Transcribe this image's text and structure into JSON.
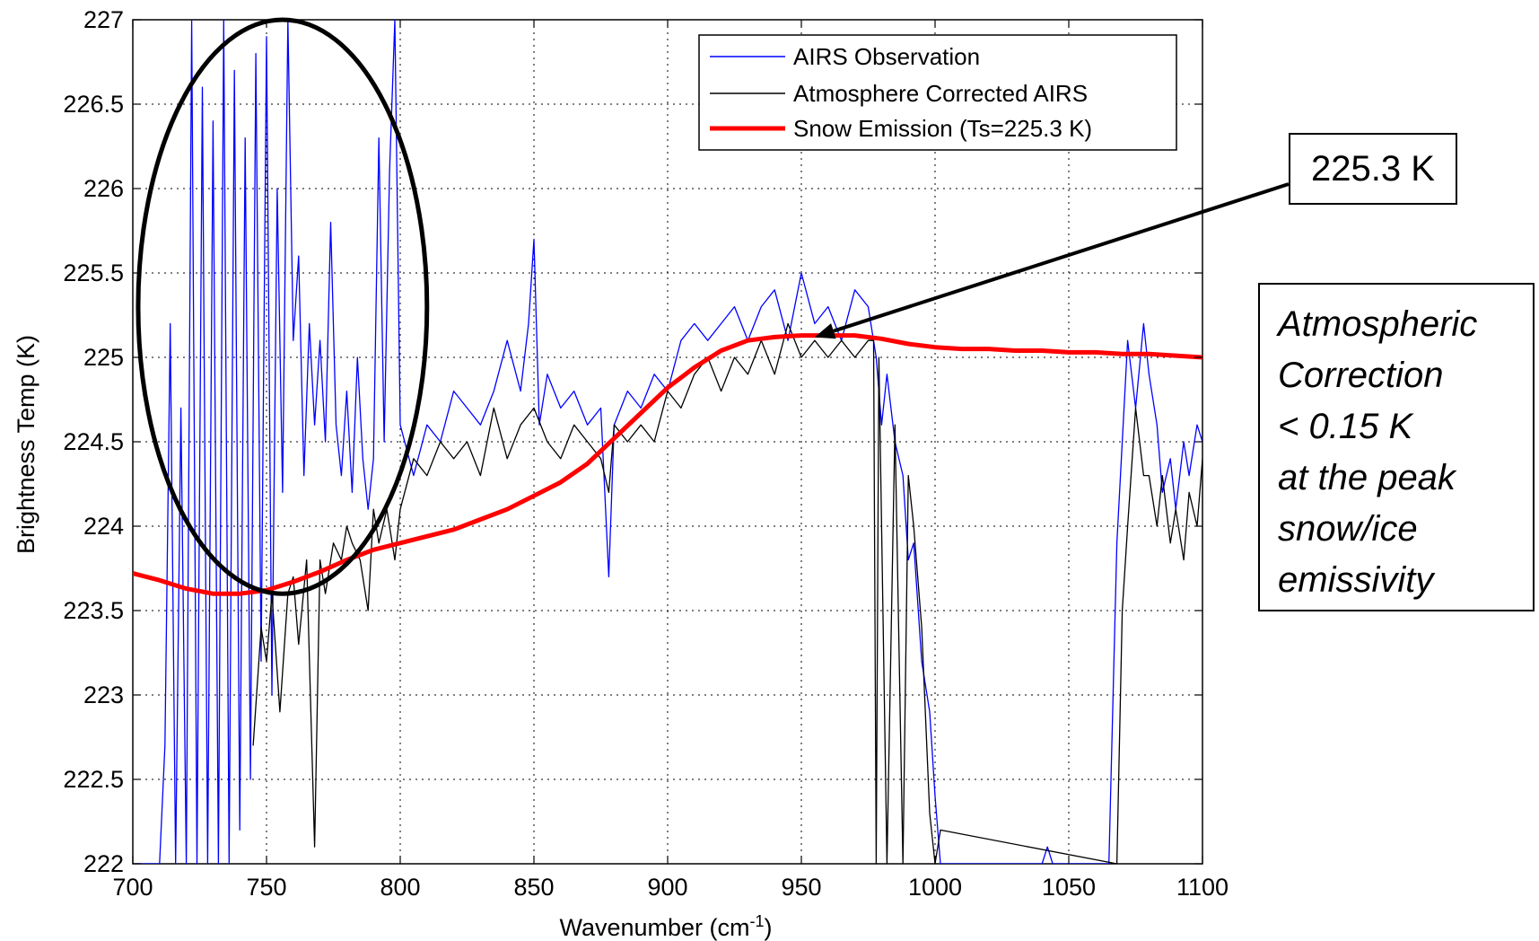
{
  "chart_data": {
    "type": "line",
    "title": "",
    "xlabel": "Wavenumber (cm",
    "xlabel_sup": "-1",
    "xlabel_end": ")",
    "ylabel": "Brightness Temp (K)",
    "xlim": [
      700,
      1100
    ],
    "ylim": [
      222,
      227
    ],
    "xticks": [
      "700",
      "750",
      "800",
      "850",
      "900",
      "950",
      "1000",
      "1050",
      "1100"
    ],
    "yticks": [
      "222",
      "222.5",
      "223",
      "223.5",
      "224",
      "224.5",
      "225",
      "225.5",
      "226",
      "226.5",
      "227"
    ],
    "grid": true,
    "legend_position": "top-right",
    "series": [
      {
        "name": "AIRS Observation",
        "color": "#0000ff",
        "x": [
          700,
          705,
          710,
          712,
          714,
          716,
          718,
          720,
          722,
          724,
          726,
          728,
          730,
          732,
          734,
          736,
          738,
          740,
          742,
          744,
          746,
          748,
          750,
          752,
          754,
          756,
          758,
          760,
          762,
          764,
          766,
          768,
          770,
          772,
          774,
          776,
          778,
          780,
          782,
          784,
          786,
          788,
          790,
          792,
          794,
          796,
          798,
          800,
          805,
          810,
          815,
          820,
          825,
          830,
          835,
          840,
          845,
          848,
          850,
          852,
          855,
          860,
          865,
          870,
          875,
          878,
          880,
          885,
          890,
          895,
          900,
          905,
          910,
          915,
          920,
          925,
          930,
          935,
          940,
          945,
          950,
          955,
          960,
          965,
          970,
          975,
          978,
          980,
          982,
          985,
          988,
          990,
          992,
          995,
          998,
          1000,
          1002,
          1004,
          1040,
          1042,
          1044,
          1065,
          1068,
          1070,
          1072,
          1075,
          1078,
          1080,
          1083,
          1085,
          1088,
          1090,
          1093,
          1095,
          1098,
          1100
        ],
        "y": [
          222,
          222,
          222,
          222.7,
          225.2,
          222,
          224.7,
          222,
          227,
          222,
          226.6,
          222,
          226.4,
          222,
          227,
          222,
          226.7,
          222.2,
          226.3,
          222.5,
          226.8,
          223.2,
          226.9,
          223,
          226,
          224.2,
          227,
          225.1,
          225.6,
          224.3,
          225.2,
          224.6,
          225.1,
          224.5,
          225.8,
          224.6,
          224.3,
          224.8,
          224.2,
          225,
          224.4,
          224.1,
          224.4,
          226.3,
          224.5,
          226.1,
          227,
          224.6,
          224.3,
          224.6,
          224.5,
          224.8,
          224.7,
          224.6,
          224.8,
          225.1,
          224.8,
          225.2,
          225.7,
          224.6,
          224.9,
          224.7,
          224.8,
          224.6,
          224.7,
          223.7,
          224.6,
          224.8,
          224.7,
          224.9,
          224.8,
          225.1,
          225.2,
          225.1,
          225.2,
          225.3,
          225.1,
          225.3,
          225.4,
          225.1,
          225.5,
          225.2,
          225.3,
          225.1,
          225.4,
          225.3,
          225,
          224.6,
          224.9,
          224.5,
          224.3,
          223.8,
          223.9,
          223.2,
          222.9,
          222.4,
          222,
          222,
          222,
          222.1,
          222,
          222,
          223.9,
          224.5,
          225.1,
          224.7,
          225.2,
          224.9,
          224.6,
          224.2,
          224.4,
          224.1,
          224.5,
          224.3,
          224.6,
          224.5
        ]
      },
      {
        "name": "Atmosphere Corrected AIRS",
        "color": "#000000",
        "x": [
          745,
          748,
          750,
          752,
          755,
          758,
          760,
          762,
          765,
          768,
          770,
          772,
          775,
          778,
          780,
          782,
          785,
          788,
          790,
          792,
          795,
          798,
          800,
          805,
          810,
          815,
          820,
          825,
          830,
          835,
          840,
          845,
          850,
          855,
          860,
          865,
          870,
          875,
          878,
          880,
          885,
          890,
          895,
          900,
          905,
          910,
          915,
          920,
          925,
          930,
          935,
          940,
          945,
          950,
          955,
          960,
          965,
          970,
          975,
          977,
          978,
          979,
          982,
          985,
          988,
          990,
          992,
          995,
          998,
          1000,
          1002,
          1068,
          1070,
          1072,
          1075,
          1078,
          1080,
          1083,
          1085,
          1088,
          1090,
          1093,
          1095,
          1098,
          1100
        ],
        "y": [
          222.7,
          223.4,
          223.2,
          223.6,
          222.9,
          223.6,
          223.7,
          223.3,
          223.8,
          222.1,
          223.8,
          223.6,
          223.9,
          223.8,
          224,
          223.9,
          223.8,
          223.5,
          224.1,
          223.9,
          224.1,
          223.8,
          224.1,
          224.4,
          224.3,
          224.5,
          224.4,
          224.5,
          224.3,
          224.7,
          224.4,
          224.6,
          224.7,
          224.5,
          224.4,
          224.6,
          224.5,
          224.4,
          224.2,
          224.6,
          224.5,
          224.6,
          224.5,
          224.8,
          224.7,
          224.9,
          225,
          224.8,
          225,
          224.9,
          225.1,
          224.9,
          225.2,
          225,
          225.1,
          225,
          225.1,
          225,
          225.1,
          225.1,
          222,
          225,
          222,
          224.6,
          222,
          224.3,
          224,
          223.4,
          222.3,
          222,
          222.2,
          222,
          223.5,
          224,
          224.7,
          224.3,
          224.3,
          224,
          224.3,
          223.9,
          224.1,
          223.8,
          224.2,
          224,
          224.4
        ]
      },
      {
        "name": "Snow Emission (Ts=225.3 K)",
        "color": "#ff0000",
        "x": [
          700,
          710,
          720,
          730,
          740,
          750,
          760,
          770,
          780,
          790,
          800,
          810,
          820,
          830,
          840,
          850,
          860,
          870,
          880,
          890,
          900,
          910,
          920,
          930,
          940,
          950,
          960,
          970,
          980,
          990,
          1000,
          1010,
          1020,
          1030,
          1040,
          1050,
          1060,
          1070,
          1080,
          1090,
          1100
        ],
        "y": [
          223.72,
          223.68,
          223.63,
          223.6,
          223.6,
          223.62,
          223.67,
          223.73,
          223.8,
          223.86,
          223.9,
          223.94,
          223.98,
          224.04,
          224.1,
          224.18,
          224.26,
          224.37,
          224.52,
          224.67,
          224.82,
          224.94,
          225.04,
          225.1,
          225.12,
          225.13,
          225.13,
          225.13,
          225.11,
          225.08,
          225.06,
          225.05,
          225.05,
          225.04,
          225.04,
          225.03,
          225.03,
          225.02,
          225.02,
          225.01,
          225
        ]
      }
    ],
    "annotations": [
      {
        "text": "225.3 K",
        "arrow_target": [
          955,
          225.12
        ]
      }
    ],
    "highlight_ellipse": {
      "center": [
        756,
        225.3
      ],
      "radius_x": 54,
      "radius_y": 1.7
    }
  },
  "callout": {
    "label": "225.3 K"
  },
  "note": {
    "lines": [
      "Atmospheric",
      "Correction",
      "< 0.15 K",
      "at the peak",
      "snow/ice",
      "emissivity"
    ]
  }
}
